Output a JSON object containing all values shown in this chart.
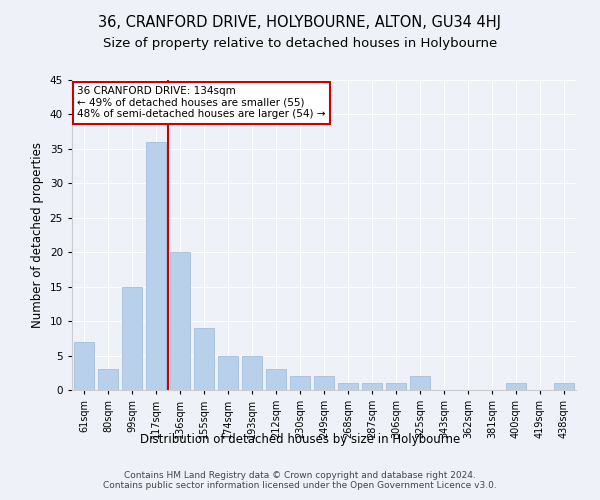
{
  "title": "36, CRANFORD DRIVE, HOLYBOURNE, ALTON, GU34 4HJ",
  "subtitle": "Size of property relative to detached houses in Holybourne",
  "xlabel": "Distribution of detached houses by size in Holybourne",
  "ylabel": "Number of detached properties",
  "categories": [
    "61sqm",
    "80sqm",
    "99sqm",
    "117sqm",
    "136sqm",
    "155sqm",
    "174sqm",
    "193sqm",
    "212sqm",
    "230sqm",
    "249sqm",
    "268sqm",
    "287sqm",
    "306sqm",
    "325sqm",
    "343sqm",
    "362sqm",
    "381sqm",
    "400sqm",
    "419sqm",
    "438sqm"
  ],
  "values": [
    7,
    3,
    15,
    36,
    20,
    9,
    5,
    5,
    3,
    2,
    2,
    1,
    1,
    1,
    2,
    0,
    0,
    0,
    1,
    0,
    1
  ],
  "bar_color": "#b8d0ea",
  "bar_edge_color": "#9ab8d8",
  "highlight_color": "#cc0000",
  "highlight_index": 4,
  "annotation_text": "36 CRANFORD DRIVE: 134sqm\n← 49% of detached houses are smaller (55)\n48% of semi-detached houses are larger (54) →",
  "annotation_box_color": "#ffffff",
  "annotation_border_color": "#cc0000",
  "ylim": [
    0,
    45
  ],
  "yticks": [
    0,
    5,
    10,
    15,
    20,
    25,
    30,
    35,
    40,
    45
  ],
  "footer": "Contains HM Land Registry data © Crown copyright and database right 2024.\nContains public sector information licensed under the Open Government Licence v3.0.",
  "bg_color": "#eef2f8",
  "title_fontsize": 10.5,
  "subtitle_fontsize": 9.5,
  "xlabel_fontsize": 8.5,
  "ylabel_fontsize": 8.5,
  "footer_fontsize": 6.5,
  "tick_fontsize": 7,
  "ytick_fontsize": 7.5
}
